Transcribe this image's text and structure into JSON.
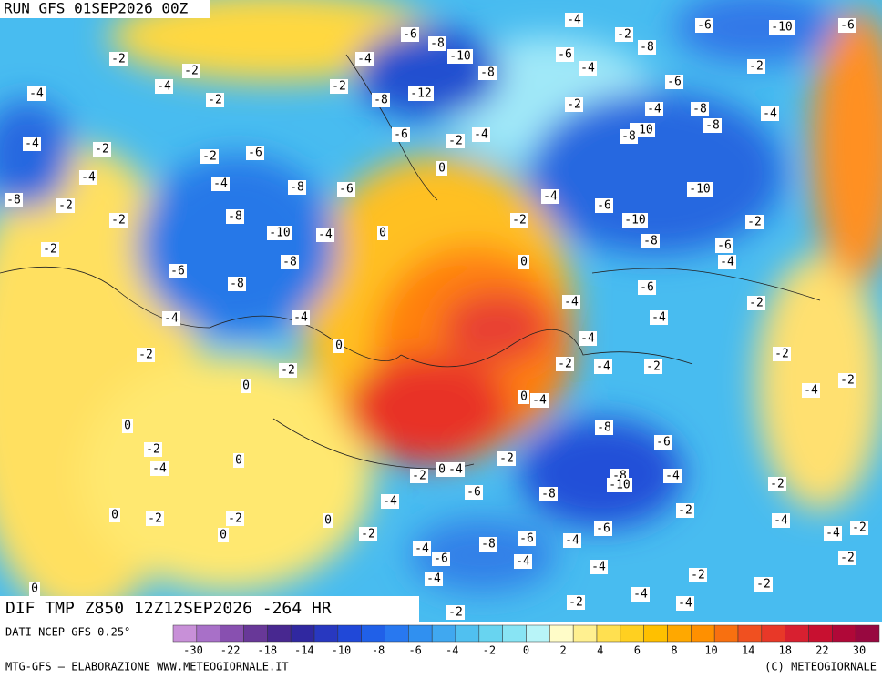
{
  "header": {
    "title": "RUN GFS 01SEP2026 00Z"
  },
  "map": {
    "title": "DIF TMP Z850 12Z12SEP2026 -264 HR",
    "contour_labels": [
      -4,
      -2,
      -6,
      -10,
      -6,
      -6,
      -8,
      -10,
      -8,
      -6,
      -4,
      -8,
      -2,
      -2,
      -4,
      -4,
      -2,
      -4,
      -2,
      -8,
      -12,
      -6,
      -2,
      -2,
      -4,
      -8,
      -4,
      -6,
      -2,
      -4,
      -10,
      -8,
      -8,
      -4,
      -2,
      -6,
      -2,
      0,
      -4,
      -8,
      -2,
      -4,
      -8,
      -6,
      -4,
      -6,
      -10,
      -2,
      -8,
      -10,
      -4,
      -2,
      -10,
      -2,
      0,
      -2,
      -6,
      -8,
      0,
      -8,
      -6,
      -4,
      -8,
      -6,
      -2,
      -4,
      -4,
      -4,
      -4,
      0,
      -4,
      -2,
      -2,
      -2,
      -2,
      -4,
      -2,
      0,
      -2,
      -4,
      0,
      -4,
      0,
      -8,
      -6,
      -2,
      -2,
      -4,
      0,
      -2,
      0,
      -4,
      -8,
      -10,
      -4,
      -2,
      -6,
      -8,
      -4,
      -2,
      0,
      -2,
      -2,
      0,
      -6,
      -4,
      -4,
      -2,
      -2,
      0,
      -6,
      -8,
      -4,
      -4,
      -6,
      -4,
      -2,
      -4,
      -4,
      -2,
      -2,
      0,
      -2,
      -4,
      -4,
      -2
    ]
  },
  "colorbar": {
    "source": "DATI NCEP GFS 0.25°",
    "colors": [
      "#c890d8",
      "#a870c8",
      "#8850b0",
      "#683898",
      "#482890",
      "#3028a0",
      "#2838c0",
      "#2048d8",
      "#2060e8",
      "#2878f0",
      "#3090f0",
      "#40a8f0",
      "#50c0f0",
      "#68d4f0",
      "#88e4f4",
      "#b8f4f8",
      "#fffcc8",
      "#fff090",
      "#ffe050",
      "#ffd020",
      "#ffc000",
      "#ffa800",
      "#ff9000",
      "#f87010",
      "#f05020",
      "#e83828",
      "#d82030",
      "#c81030",
      "#b00838",
      "#980840"
    ],
    "ticks": [
      -30,
      -22,
      -18,
      -14,
      -10,
      -8,
      -6,
      -4,
      -2,
      0,
      2,
      4,
      6,
      8,
      10,
      14,
      18,
      22,
      30
    ]
  },
  "footer": {
    "credit": "MTG-GFS — ELABORAZIONE WWW.METEOGIORNALE.IT",
    "copyright": "(C) METEOGIORNALE"
  }
}
